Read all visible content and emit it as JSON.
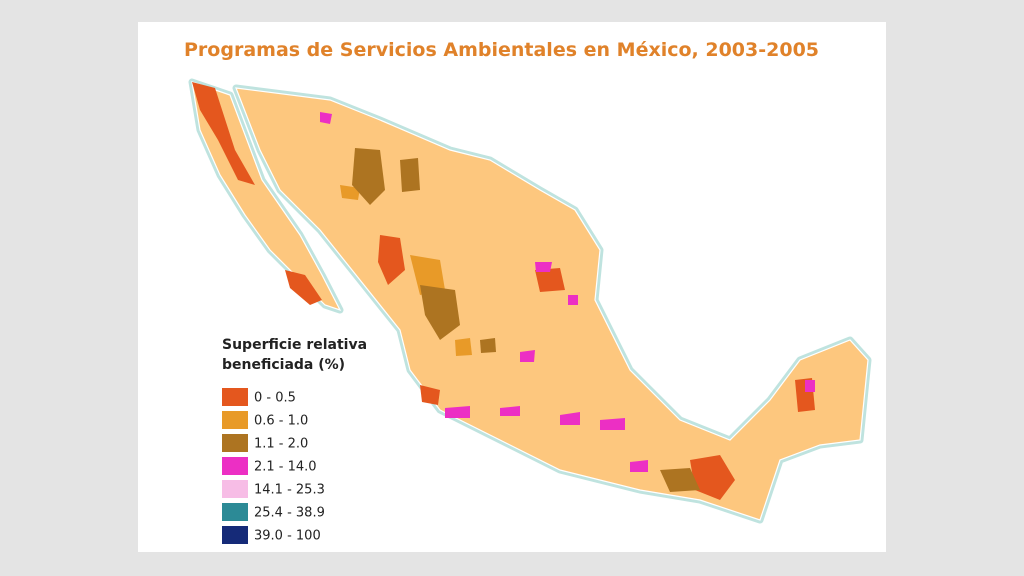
{
  "title": "Programas de Servicios Ambientales en México, 2003-2005",
  "legend": {
    "title_lines": [
      "Superficie relativa",
      "beneficiada (%)"
    ],
    "items": [
      {
        "label": "0 - 0.5",
        "color": "#e4571e"
      },
      {
        "label": "0.6 - 1.0",
        "color": "#e89a28"
      },
      {
        "label": "1.1 - 2.0",
        "color": "#ad7421"
      },
      {
        "label": "2.1 - 14.0",
        "color": "#ec2fc4"
      },
      {
        "label": "14.1 - 25.3",
        "color": "#f7bde6"
      },
      {
        "label": "25.4 - 38.9",
        "color": "#2c8a96"
      },
      {
        "label": "39.0 - 100",
        "color": "#152a78"
      }
    ]
  }
}
